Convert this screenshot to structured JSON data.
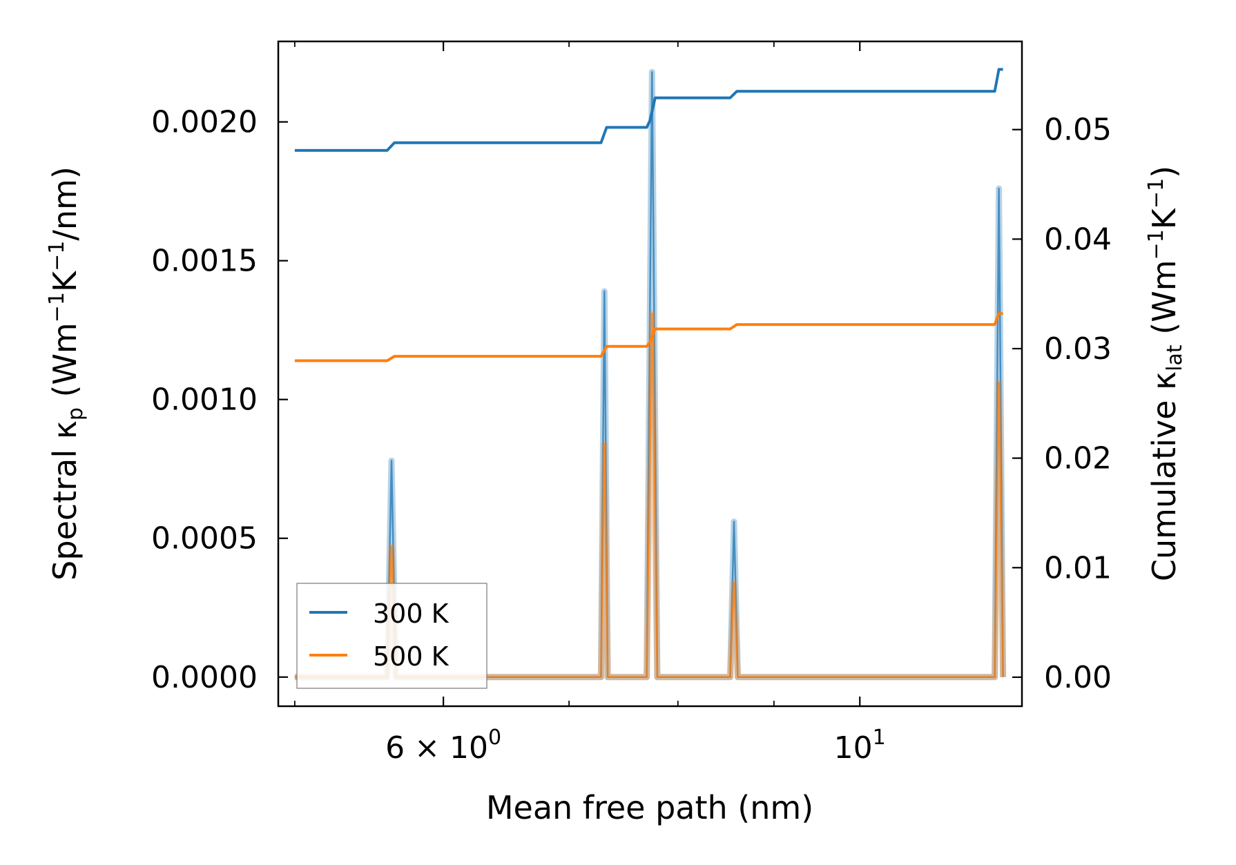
{
  "chart_data": {
    "type": "line",
    "title": "",
    "xlabel": "Mean free path (nm)",
    "ylabel_left": {
      "prefix": "Spectral κ",
      "sub": "p",
      "units": " (Wm",
      "sup1": "−1",
      "mid": "K",
      "sup2": "−1",
      "end": "/nm)"
    },
    "ylabel_right": {
      "prefix": "Cumulative κ",
      "sub": "lat",
      "units": " (Wm",
      "sup1": "−1",
      "mid": "K",
      "sup2": "−1",
      "end": ")"
    },
    "xscale": "log",
    "xlim": [
      4.9,
      12.2
    ],
    "ylim_left": [
      -0.000105,
      0.00229
    ],
    "ylim_right": [
      -0.00265,
      0.05805
    ],
    "x_ticks": [
      {
        "value": 6,
        "mantissa": "6 × 10",
        "exp": "0"
      },
      {
        "value": 10,
        "mantissa": "10",
        "exp": "1"
      }
    ],
    "x_minor_ticks": [
      5,
      7,
      8,
      9
    ],
    "y_left_ticks": [
      "0.0000",
      "0.0005",
      "0.0010",
      "0.0015",
      "0.0020"
    ],
    "y_left_tick_values": [
      0,
      0.0005,
      0.001,
      0.0015,
      0.002
    ],
    "y_right_ticks": [
      "0.00",
      "0.01",
      "0.02",
      "0.03",
      "0.04",
      "0.05"
    ],
    "y_right_tick_values": [
      0,
      0.01,
      0.02,
      0.03,
      0.04,
      0.05
    ],
    "legend": {
      "position": "lower-left",
      "entries": [
        "300 K",
        "500 K"
      ]
    },
    "colors": {
      "300 K": "#1f77b4",
      "500 K": "#ff7f0e"
    },
    "spectral_series": [
      {
        "name": "300 K",
        "x": [
          5.0,
          5.6,
          5.63,
          5.66,
          7.28,
          7.31,
          7.34,
          7.7,
          7.75,
          7.8,
          8.53,
          8.57,
          8.61,
          11.8,
          11.86,
          11.92
        ],
        "values": [
          0,
          0,
          0.00078,
          0,
          0,
          0.00139,
          0,
          0,
          0.00218,
          0,
          0,
          0.00056,
          0,
          0,
          0.00176,
          0
        ]
      },
      {
        "name": "500 K",
        "x": [
          5.0,
          5.6,
          5.63,
          5.66,
          7.28,
          7.31,
          7.34,
          7.7,
          7.75,
          7.8,
          8.53,
          8.57,
          8.61,
          11.8,
          11.86,
          11.92
        ],
        "values": [
          0,
          0,
          0.00047,
          0,
          0,
          0.00084,
          0,
          0,
          0.00131,
          0,
          0,
          0.00034,
          0,
          0,
          0.00106,
          0
        ]
      }
    ],
    "cumulative_series": [
      {
        "name": "300 K",
        "x": [
          5.0,
          5.6,
          5.65,
          7.28,
          7.33,
          7.7,
          7.73,
          7.78,
          8.53,
          8.6,
          11.8,
          11.86,
          11.92
        ],
        "values": [
          0.0481,
          0.0481,
          0.0488,
          0.0488,
          0.0502,
          0.0502,
          0.0508,
          0.0529,
          0.0529,
          0.0535,
          0.0535,
          0.0555,
          0.0555
        ]
      },
      {
        "name": "500 K",
        "x": [
          5.0,
          5.6,
          5.65,
          7.28,
          7.33,
          7.7,
          7.73,
          7.78,
          8.53,
          8.6,
          11.8,
          11.86,
          11.92
        ],
        "values": [
          0.0289,
          0.0289,
          0.0293,
          0.0293,
          0.0302,
          0.0302,
          0.0306,
          0.0318,
          0.0318,
          0.0322,
          0.0322,
          0.0332,
          0.0332
        ]
      }
    ]
  }
}
